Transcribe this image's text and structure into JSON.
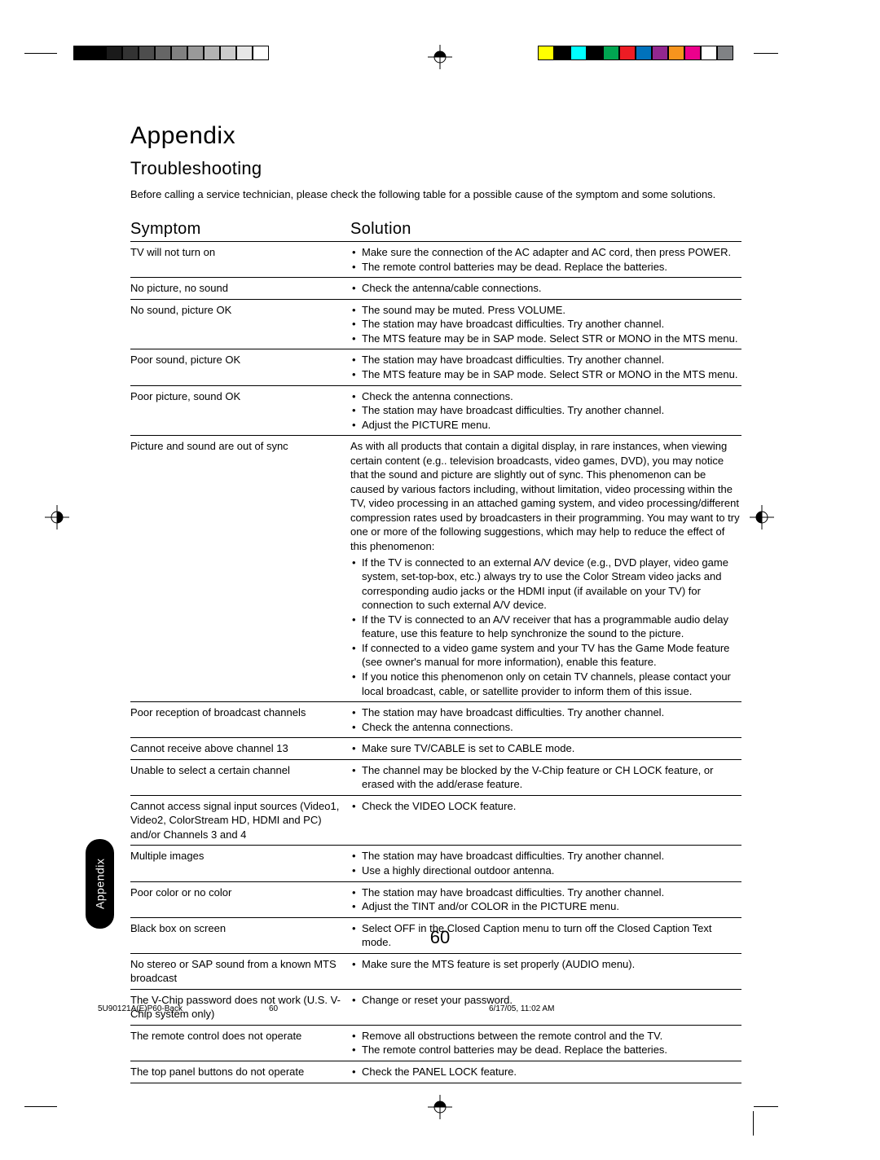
{
  "title": "Appendix",
  "subtitle": "Troubleshooting",
  "intro": "Before calling a service technician, please check the following table for a possible cause of the symptom and some solutions.",
  "headers": {
    "symptom": "Symptom",
    "solution": "Solution"
  },
  "side_tab": "Appendix",
  "page_number": "60",
  "footer": {
    "file": "5U90121A(E)P60-Back",
    "page": "60",
    "timestamp": "6/17/05, 11:02 AM"
  },
  "color_bars_left": [
    "#000000",
    "#000000",
    "#1a1a1a",
    "#333333",
    "#4d4d4d",
    "#666666",
    "#808080",
    "#999999",
    "#b3b3b3",
    "#cccccc",
    "#e6e6e6",
    "#ffffff"
  ],
  "color_bars_right": [
    "#ffff00",
    "#000000",
    "#00ffff",
    "#000000",
    "#00a651",
    "#ed1c24",
    "#0072bc",
    "#92278f",
    "#f7941d",
    "#ec008c",
    "#ffffff",
    "#808285"
  ],
  "rows": [
    {
      "symptom": "TV will not turn on",
      "solutions": [
        "Make sure the connection of the AC adapter and AC cord, then press POWER.",
        "The remote control batteries may be dead. Replace the batteries."
      ]
    },
    {
      "symptom": "No picture, no sound",
      "solutions": [
        "Check the antenna/cable connections."
      ]
    },
    {
      "symptom": "No sound, picture OK",
      "solutions": [
        "The sound may be muted. Press VOLUME.",
        "The station may have broadcast difficulties. Try another channel.",
        "The MTS feature may be in SAP mode. Select STR or MONO in the MTS menu."
      ]
    },
    {
      "symptom": "Poor sound, picture OK",
      "solutions": [
        "The station may have broadcast difficulties. Try another channel.",
        "The MTS feature may be in SAP mode. Select STR or MONO in the MTS menu."
      ]
    },
    {
      "symptom": "Poor picture, sound OK",
      "solutions": [
        "Check the antenna connections.",
        "The station may have broadcast difficulties. Try another channel.",
        "Adjust the PICTURE menu."
      ]
    },
    {
      "symptom": "Picture and sound are out of sync",
      "paragraph": "As with all products that contain a digital display, in rare instances, when viewing certain content (e.g.. television broadcasts, video games, DVD), you may notice that the sound and picture are slightly out of sync.  This phenomenon can be caused by various factors including, without limitation, video processing within the TV, video processing in an attached gaming system, and video processing/different compression rates used by broadcasters in their programming.  You may want to try one or more of the following suggestions, which may help to reduce the effect of this phenomenon:",
      "solutions": [
        "If the TV is connected to an external A/V device (e.g., DVD player, video game system, set-top-box, etc.) always try to use the Color Stream video jacks and corresponding audio jacks or the HDMI input (if available on your TV) for connection to such external A/V device.",
        "If the TV is connected to an A/V receiver that has a programmable audio delay feature, use this feature to help synchronize the sound to the picture.",
        "If connected to a video game system and your TV has the Game Mode feature (see owner's manual for more information), enable this feature.",
        "If you notice this phenomenon only on cetain TV channels, please contact your local broadcast, cable, or satellite provider to inform them of this issue."
      ]
    },
    {
      "symptom": "Poor reception of broadcast channels",
      "solutions": [
        "The station may have broadcast difficulties. Try another channel.",
        "Check the antenna connections."
      ]
    },
    {
      "symptom": "Cannot receive above channel 13",
      "solutions": [
        "Make sure TV/CABLE is set to CABLE mode."
      ]
    },
    {
      "symptom": "Unable to select a certain channel",
      "solutions": [
        "The channel may be blocked by the V-Chip feature or CH LOCK feature, or erased with the add/erase feature."
      ]
    },
    {
      "symptom": "Cannot access signal input sources (Video1, Video2, ColorStream HD, HDMI and PC) and/or Channels 3 and 4",
      "solutions": [
        "Check the VIDEO LOCK feature."
      ]
    },
    {
      "symptom": "Multiple images",
      "solutions": [
        "The station may have broadcast difficulties. Try another channel.",
        "Use a highly directional outdoor antenna."
      ]
    },
    {
      "symptom": "Poor color or no color",
      "solutions": [
        "The station may have broadcast difficulties. Try another channel.",
        "Adjust the TINT and/or COLOR in the PICTURE menu."
      ]
    },
    {
      "symptom": "Black box on screen",
      "solutions": [
        "Select OFF in the Closed Caption menu to turn off the Closed Caption Text mode."
      ]
    },
    {
      "symptom": "No stereo or SAP sound from a known MTS broadcast",
      "solutions": [
        "Make sure the MTS feature is set properly (AUDIO menu)."
      ]
    },
    {
      "symptom": "The V-Chip password does not work (U.S. V-Chip system only)",
      "solutions": [
        "Change or reset your password."
      ]
    },
    {
      "symptom": "The remote control does not operate",
      "solutions": [
        "Remove all obstructions between the remote control and the TV.",
        "The remote control batteries may be dead. Replace the batteries."
      ]
    },
    {
      "symptom": "The top panel buttons do not operate",
      "solutions": [
        "Check the PANEL LOCK feature."
      ]
    }
  ]
}
